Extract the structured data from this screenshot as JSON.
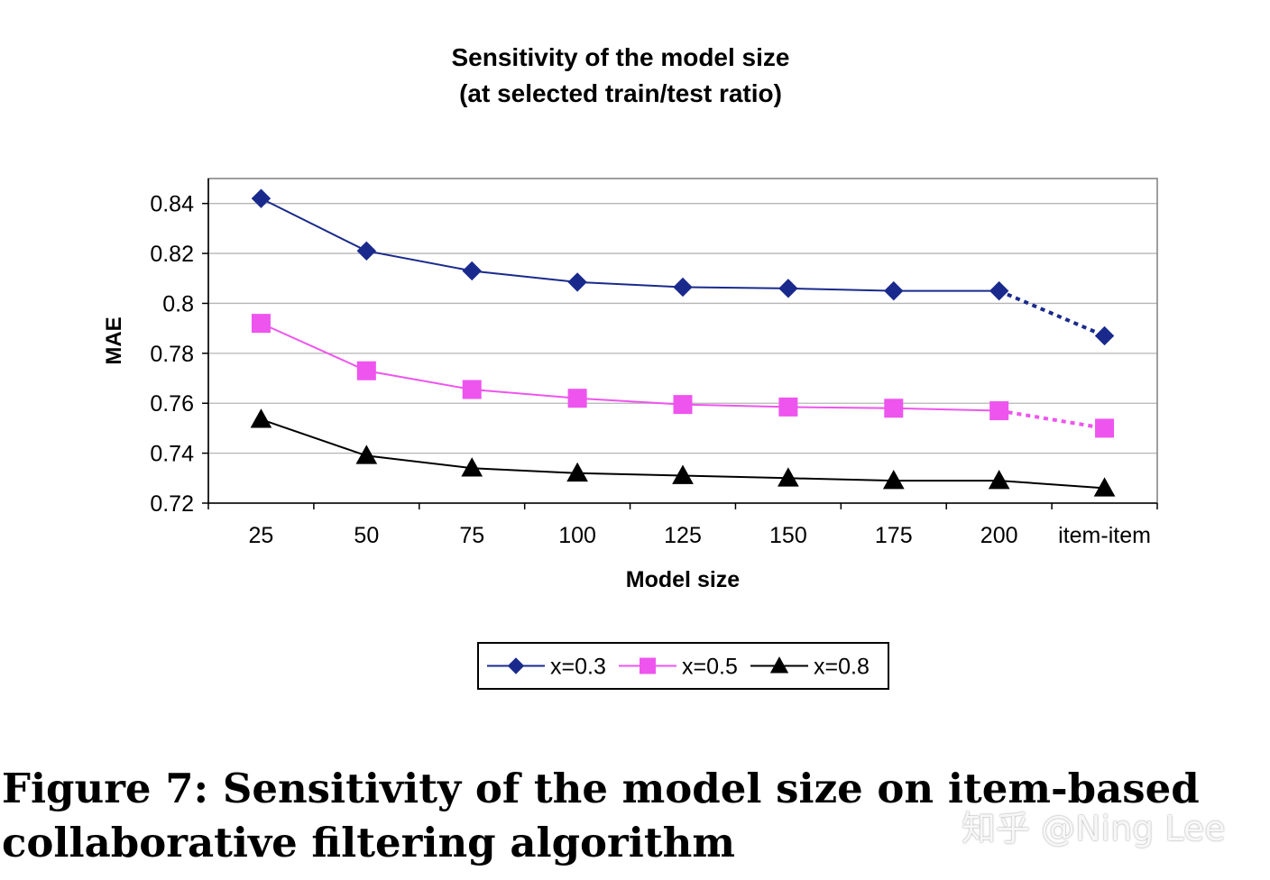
{
  "chart_data": {
    "type": "line",
    "title": "Sensitivity of the model size",
    "subtitle": "(at selected train/test ratio)",
    "xlabel": "Model size",
    "ylabel": "MAE",
    "categories": [
      "25",
      "50",
      "75",
      "100",
      "125",
      "150",
      "175",
      "200",
      "item-item"
    ],
    "ylim": [
      0.72,
      0.85
    ],
    "yticks": [
      0.72,
      0.74,
      0.76,
      0.78,
      0.8,
      0.82,
      0.84
    ],
    "ytick_labels": [
      "0.72",
      "0.74",
      "0.76",
      "0.78",
      "0.8",
      "0.82",
      "0.84"
    ],
    "grid": true,
    "legend_position": "bottom-center",
    "series": [
      {
        "name": "x=0.3",
        "color": "#1a2a8c",
        "marker": "diamond",
        "values": [
          0.842,
          0.821,
          0.813,
          0.8085,
          0.8065,
          0.806,
          0.805,
          0.805,
          0.787
        ]
      },
      {
        "name": "x=0.5",
        "color": "#ee55ee",
        "marker": "square",
        "values": [
          0.792,
          0.773,
          0.7655,
          0.762,
          0.7595,
          0.7585,
          0.758,
          0.757,
          0.75
        ]
      },
      {
        "name": "x=0.8",
        "color": "#000000",
        "marker": "triangle",
        "values": [
          0.7535,
          0.739,
          0.734,
          0.732,
          0.731,
          0.73,
          0.729,
          0.729,
          0.726
        ]
      }
    ],
    "dashed_last_segment": true
  },
  "caption": {
    "line1": "Figure 7:  Sensitivity of the model size on item-based",
    "line2": "collaborative filtering algorithm"
  },
  "watermark": "知乎 @Ning Lee"
}
